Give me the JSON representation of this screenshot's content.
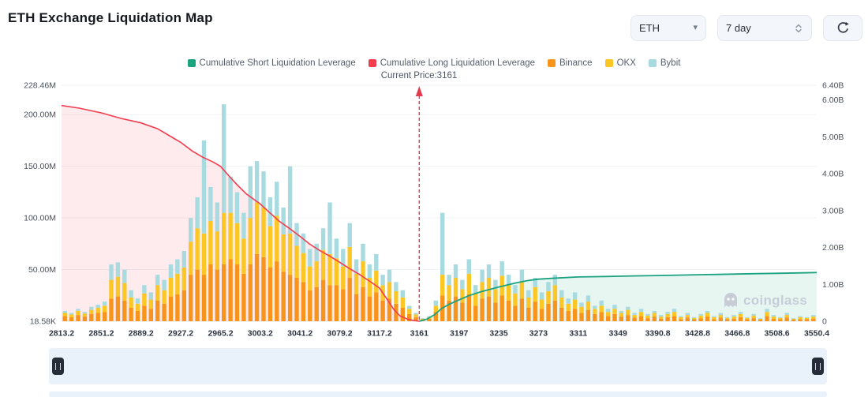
{
  "header": {
    "title": "ETH Exchange Liquidation Map",
    "symbol_dropdown": {
      "value": "ETH"
    },
    "period_stepper": {
      "value": "7 day"
    }
  },
  "legend": {
    "items": [
      {
        "label": "Cumulative Short Liquidation Leverage",
        "color": "#1ba27e"
      },
      {
        "label": "Cumulative Long Liquidation Leverage",
        "color": "#f23d4e"
      },
      {
        "label": "Binance",
        "color": "#f8931c"
      },
      {
        "label": "OKX",
        "color": "#fcc624"
      },
      {
        "label": "Bybit",
        "color": "#a8dbe0"
      }
    ]
  },
  "annotation": {
    "current_price_label": "Current Price:3161",
    "current_price": 3161
  },
  "watermark": {
    "text": "coinglass"
  },
  "chart_data": {
    "type": "bar",
    "title": "ETH Exchange Liquidation Map",
    "x_tick_labels": [
      "2813.2",
      "2851.2",
      "2889.2",
      "2927.2",
      "2965.2",
      "3003.2",
      "3041.2",
      "3079.2",
      "3117.2",
      "3161",
      "3197",
      "3235",
      "3273",
      "3311",
      "3349",
      "3390.8",
      "3428.8",
      "3466.8",
      "3508.6",
      "3550.4"
    ],
    "x_tick_values": [
      2813.2,
      2851.2,
      2889.2,
      2927.2,
      2965.2,
      3003.2,
      3041.2,
      3079.2,
      3117.2,
      3161,
      3197,
      3235,
      3273,
      3311,
      3349,
      3390.8,
      3428.8,
      3466.8,
      3508.6,
      3550.4
    ],
    "left_axis": {
      "labels": [
        "18.58K",
        "50.00M",
        "100.00M",
        "150.00M",
        "200.00M",
        "228.46M"
      ],
      "values": [
        0,
        50,
        100,
        150,
        200,
        228.46
      ],
      "max": 228.46,
      "unit": "M"
    },
    "right_axis": {
      "labels": [
        "0",
        "1.00B",
        "2.00B",
        "3.00B",
        "4.00B",
        "5.00B",
        "6.00B",
        "6.40B"
      ],
      "values": [
        0,
        1,
        2,
        3,
        4,
        5,
        6,
        6.4
      ],
      "max": 6.4,
      "unit": "B"
    },
    "bar_series": {
      "names": [
        "Binance",
        "OKX",
        "Bybit"
      ],
      "colors": [
        "#f8931c",
        "#fcc624",
        "#a8dbe0"
      ],
      "stacked": true,
      "unit": "M",
      "bars_per_interval": 6,
      "values": [
        [
          5,
          3,
          2
        ],
        [
          4,
          2.5,
          1.5
        ],
        [
          6,
          4,
          2
        ],
        [
          4.5,
          3,
          1.5
        ],
        [
          7,
          4,
          3
        ],
        [
          8,
          5,
          3
        ],
        [
          9,
          6,
          4
        ],
        [
          22,
          18,
          15
        ],
        [
          24,
          19,
          14
        ],
        [
          20,
          17,
          13
        ],
        [
          13,
          10,
          7
        ],
        [
          10,
          7,
          5
        ],
        [
          15,
          12,
          8
        ],
        [
          12,
          9,
          7
        ],
        [
          20,
          15,
          10
        ],
        [
          17,
          13,
          10
        ],
        [
          24,
          18,
          13
        ],
        [
          26,
          20,
          14
        ],
        [
          30,
          22,
          16
        ],
        [
          45,
          32,
          23
        ],
        [
          50,
          40,
          30
        ],
        [
          45,
          40,
          90
        ],
        [
          55,
          42,
          33
        ],
        [
          50,
          37,
          28
        ],
        [
          55,
          50,
          105
        ],
        [
          60,
          45,
          35
        ],
        [
          55,
          40,
          30
        ],
        [
          46,
          34,
          25
        ],
        [
          55,
          45,
          50
        ],
        [
          65,
          50,
          40
        ],
        [
          62,
          48,
          35
        ],
        [
          52,
          40,
          28
        ],
        [
          58,
          44,
          33
        ],
        [
          48,
          36,
          26
        ],
        [
          45,
          40,
          65
        ],
        [
          42,
          31,
          22
        ],
        [
          38,
          28,
          19
        ],
        [
          30,
          23,
          17
        ],
        [
          33,
          25,
          17
        ],
        [
          40,
          29,
          21
        ],
        [
          35,
          30,
          50
        ],
        [
          35,
          26,
          19
        ],
        [
          31,
          22,
          17
        ],
        [
          42,
          30,
          23
        ],
        [
          26,
          20,
          14
        ],
        [
          33,
          25,
          17
        ],
        [
          24,
          18,
          13
        ],
        [
          28,
          21,
          16
        ],
        [
          20,
          15,
          10
        ],
        [
          22,
          16,
          12
        ],
        [
          17,
          12,
          9
        ],
        [
          13,
          10,
          7
        ],
        [
          7,
          5,
          3
        ],
        [
          4,
          2.5,
          1.5
        ],
        [
          1.5,
          1,
          0.5
        ],
        [
          2.5,
          1.5,
          1
        ],
        [
          9,
          6,
          5
        ],
        [
          25,
          20,
          60
        ],
        [
          20,
          15,
          10
        ],
        [
          24,
          18,
          13
        ],
        [
          18,
          13,
          9
        ],
        [
          26,
          20,
          14
        ],
        [
          15,
          12,
          8
        ],
        [
          22,
          16,
          12
        ],
        [
          24,
          18,
          13
        ],
        [
          18,
          13,
          9
        ],
        [
          25,
          19,
          14
        ],
        [
          20,
          15,
          10
        ],
        [
          15,
          12,
          8
        ],
        [
          22,
          16,
          12
        ],
        [
          13,
          10,
          7
        ],
        [
          19,
          14,
          9
        ],
        [
          12,
          9,
          7
        ],
        [
          17,
          12,
          9
        ],
        [
          20,
          15,
          10
        ],
        [
          13,
          10,
          7
        ],
        [
          10,
          7,
          5
        ],
        [
          12,
          9,
          7
        ],
        [
          8,
          6,
          4
        ],
        [
          11,
          8,
          6
        ],
        [
          7,
          5,
          3
        ],
        [
          9,
          6,
          5
        ],
        [
          5,
          4,
          3
        ],
        [
          7,
          5,
          4
        ],
        [
          4.5,
          3.5,
          2
        ],
        [
          6,
          5,
          3
        ],
        [
          3.5,
          2.5,
          2
        ],
        [
          5,
          4,
          3
        ],
        [
          3,
          2.5,
          1.5
        ],
        [
          4.5,
          3.5,
          2
        ],
        [
          2.5,
          2,
          1.5
        ],
        [
          4,
          3,
          2
        ],
        [
          5,
          4,
          3
        ],
        [
          2,
          2,
          1
        ],
        [
          3.5,
          2.5,
          2
        ],
        [
          2,
          1.2,
          0.8
        ],
        [
          3,
          2.5,
          1.5
        ],
        [
          4.5,
          3.5,
          2
        ],
        [
          2,
          2,
          1
        ],
        [
          3.5,
          2.5,
          2
        ],
        [
          2,
          1.2,
          0.8
        ],
        [
          2.5,
          2,
          1.5
        ],
        [
          4,
          3,
          2
        ],
        [
          2,
          1.2,
          0.8
        ],
        [
          3,
          2.5,
          1.5
        ],
        [
          1.5,
          1,
          0.5
        ],
        [
          5,
          4,
          3
        ],
        [
          2.5,
          2,
          1.5
        ],
        [
          2,
          1.2,
          0.8
        ],
        [
          3.5,
          2.5,
          2
        ],
        [
          1.5,
          1,
          0.5
        ],
        [
          2,
          2,
          1
        ],
        [
          2,
          1.2,
          0.8
        ],
        [
          2.5,
          2,
          1.5
        ]
      ]
    },
    "long_line": {
      "name": "Cumulative Long Liquidation Leverage",
      "color": "#f23d4e",
      "fill": "rgba(242,61,78,0.10)",
      "unit": "B",
      "points": [
        [
          2813.2,
          5.85
        ],
        [
          2830,
          5.78
        ],
        [
          2851.2,
          5.65
        ],
        [
          2870,
          5.5
        ],
        [
          2889.2,
          5.38
        ],
        [
          2905,
          5.22
        ],
        [
          2917,
          5.02
        ],
        [
          2927.2,
          4.85
        ],
        [
          2938,
          4.62
        ],
        [
          2948,
          4.45
        ],
        [
          2958,
          4.32
        ],
        [
          2965.2,
          4.2
        ],
        [
          2973,
          3.95
        ],
        [
          2981,
          3.7
        ],
        [
          2990,
          3.45
        ],
        [
          3003.2,
          3.18
        ],
        [
          3012,
          2.95
        ],
        [
          3021,
          2.72
        ],
        [
          3031,
          2.52
        ],
        [
          3041.2,
          2.3
        ],
        [
          3050,
          2.1
        ],
        [
          3060,
          1.92
        ],
        [
          3070,
          1.76
        ],
        [
          3079.2,
          1.6
        ],
        [
          3089,
          1.42
        ],
        [
          3098,
          1.27
        ],
        [
          3108,
          1.08
        ],
        [
          3117.2,
          0.9
        ],
        [
          3126,
          0.58
        ],
        [
          3133,
          0.32
        ],
        [
          3140,
          0.14
        ],
        [
          3148,
          0.06
        ],
        [
          3155,
          0.02
        ],
        [
          3161,
          0
        ]
      ]
    },
    "short_line": {
      "name": "Cumulative Short Liquidation Leverage",
      "color": "#1ba27e",
      "fill": "rgba(27,162,126,0.10)",
      "unit": "B",
      "points": [
        [
          3161,
          0
        ],
        [
          3168,
          0.06
        ],
        [
          3175,
          0.18
        ],
        [
          3181,
          0.34
        ],
        [
          3188,
          0.46
        ],
        [
          3197,
          0.58
        ],
        [
          3207,
          0.7
        ],
        [
          3218,
          0.8
        ],
        [
          3235,
          0.93
        ],
        [
          3250,
          1.03
        ],
        [
          3262,
          1.1
        ],
        [
          3273,
          1.14
        ],
        [
          3290,
          1.17
        ],
        [
          3311,
          1.2
        ],
        [
          3330,
          1.21
        ],
        [
          3349,
          1.22
        ],
        [
          3370,
          1.23
        ],
        [
          3390.8,
          1.24
        ],
        [
          3410,
          1.25
        ],
        [
          3428.8,
          1.26
        ],
        [
          3448,
          1.27
        ],
        [
          3466.8,
          1.28
        ],
        [
          3488,
          1.29
        ],
        [
          3508.6,
          1.3
        ],
        [
          3530,
          1.31
        ],
        [
          3550.4,
          1.32
        ]
      ]
    }
  }
}
